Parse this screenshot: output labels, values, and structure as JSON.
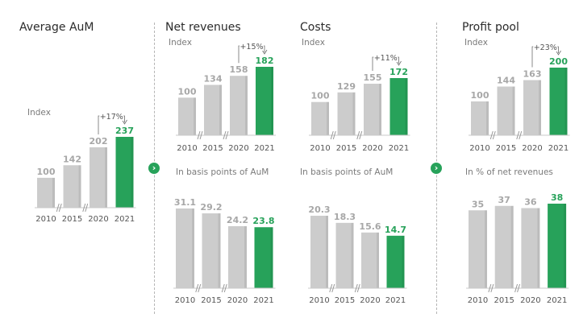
{
  "colors": {
    "gray": "#cccccc",
    "green": "#27a25a",
    "label_gray": "#a7a7a7",
    "tick": "#555555"
  },
  "columns": {
    "aum": {
      "title": "Average AuM"
    },
    "revenues": {
      "title": "Net revenues"
    },
    "costs": {
      "title": "Costs"
    },
    "profit": {
      "title": "Profit pool"
    }
  },
  "arrows": {
    "left": "›",
    "right": "›"
  },
  "chart_data": [
    {
      "id": "aum-index",
      "type": "bar",
      "title": "Average AuM",
      "subtitle": "Index",
      "categories": [
        "2010",
        "2015",
        "2020",
        "2021"
      ],
      "values": [
        100,
        142,
        202,
        237
      ],
      "value_labels": [
        "100",
        "142",
        "202",
        "237"
      ],
      "highlight_index": 3,
      "change_label": "+17%"
    },
    {
      "id": "revenues-index",
      "type": "bar",
      "title": "Net revenues",
      "subtitle": "Index",
      "categories": [
        "2010",
        "2015",
        "2020",
        "2021"
      ],
      "values": [
        100,
        134,
        158,
        182
      ],
      "value_labels": [
        "100",
        "134",
        "158",
        "182"
      ],
      "highlight_index": 3,
      "change_label": "+15%"
    },
    {
      "id": "costs-index",
      "type": "bar",
      "title": "Costs",
      "subtitle": "Index",
      "categories": [
        "2010",
        "2015",
        "2020",
        "2021"
      ],
      "values": [
        100,
        129,
        155,
        172
      ],
      "value_labels": [
        "100",
        "129",
        "155",
        "172"
      ],
      "highlight_index": 3,
      "change_label": "+11%"
    },
    {
      "id": "profit-index",
      "type": "bar",
      "title": "Profit pool",
      "subtitle": "Index",
      "categories": [
        "2010",
        "2015",
        "2020",
        "2021"
      ],
      "values": [
        100,
        144,
        163,
        200
      ],
      "value_labels": [
        "100",
        "144",
        "163",
        "200"
      ],
      "highlight_index": 3,
      "change_label": "+23%"
    },
    {
      "id": "revenues-bps",
      "type": "bar",
      "subtitle": "In basis points of AuM",
      "categories": [
        "2010",
        "2015",
        "2020",
        "2021"
      ],
      "values": [
        31.1,
        29.2,
        24.2,
        23.8
      ],
      "value_labels": [
        "31.1",
        "29.2",
        "24.2",
        "23.8"
      ],
      "highlight_index": 3
    },
    {
      "id": "costs-bps",
      "type": "bar",
      "subtitle": "In basis points of AuM",
      "categories": [
        "2010",
        "2015",
        "2020",
        "2021"
      ],
      "values": [
        20.3,
        18.3,
        15.6,
        14.7
      ],
      "value_labels": [
        "20.3",
        "18.3",
        "15.6",
        "14.7"
      ],
      "highlight_index": 3
    },
    {
      "id": "profit-pct",
      "type": "bar",
      "subtitle": "In % of net revenues",
      "categories": [
        "2010",
        "2015",
        "2020",
        "2021"
      ],
      "values": [
        35,
        37,
        36,
        38
      ],
      "value_labels": [
        "35",
        "37",
        "36",
        "38"
      ],
      "highlight_index": 3
    }
  ]
}
